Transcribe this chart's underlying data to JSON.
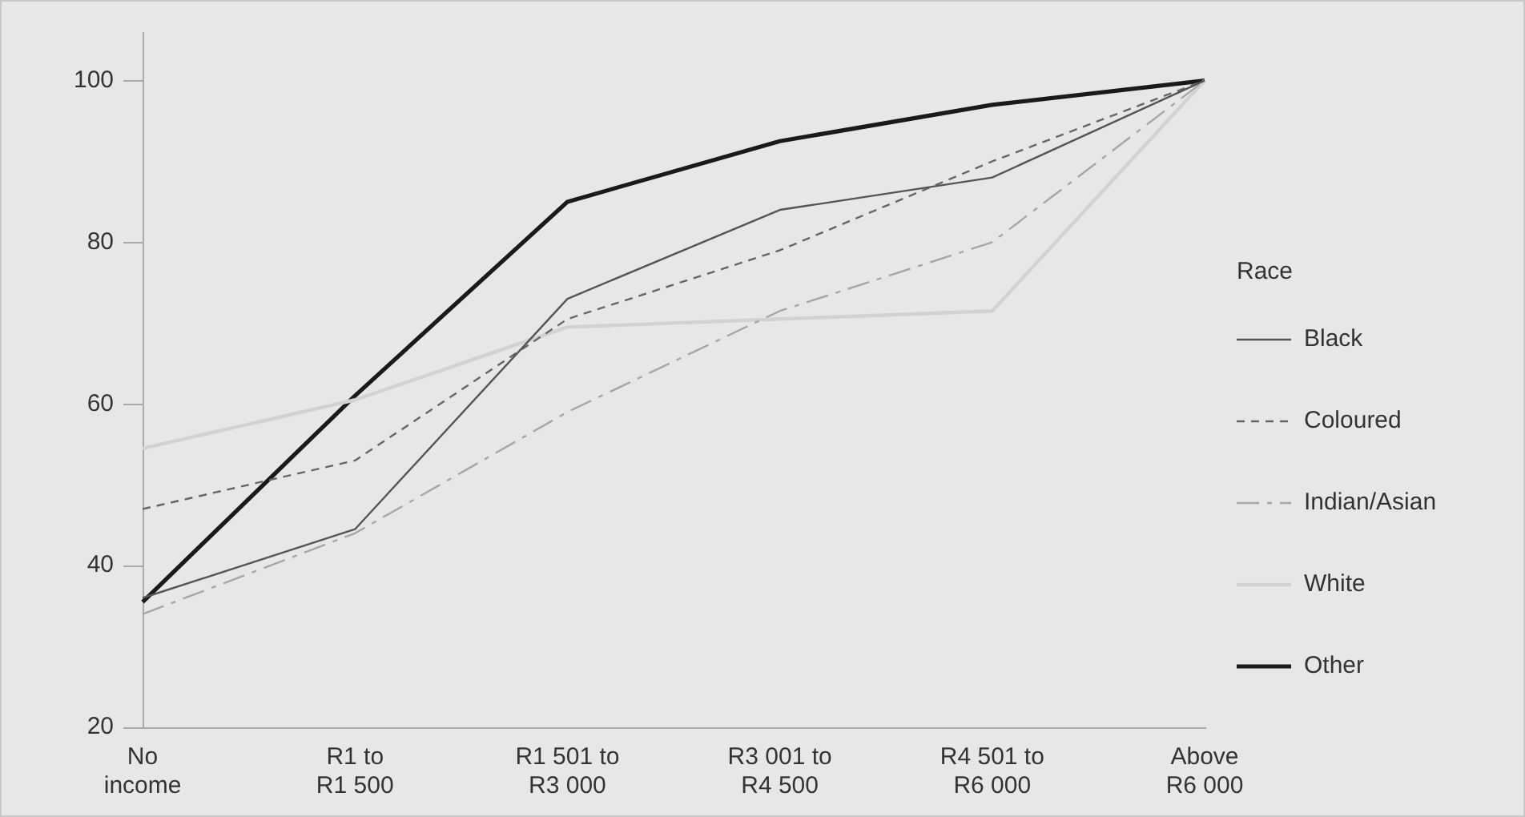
{
  "chart_data": {
    "type": "line",
    "categories": [
      "No\nincome",
      "R1 to\nR1 500",
      "R1 501 to\nR3 000",
      "R3 001 to\nR4 500",
      "R4 501 to\nR6 000",
      "Above\nR6 000"
    ],
    "legend_title": "Race",
    "legend": "right",
    "grid": false,
    "marker": "none",
    "ylim": [
      20,
      106
    ],
    "yticks": [
      20,
      40,
      60,
      80,
      100
    ],
    "series": [
      {
        "name": "Black",
        "color": "#555555",
        "line_style": "solid",
        "values": [
          36,
          44.5,
          73,
          84,
          88,
          100
        ]
      },
      {
        "name": "Coloured",
        "color": "#666666",
        "line_style": "dashed",
        "values": [
          47,
          53,
          70.5,
          79,
          90,
          100
        ]
      },
      {
        "name": "Indian/Asian",
        "color": "#a6a6a6",
        "line_style": "dashdot",
        "values": [
          34,
          44,
          59,
          71.5,
          80,
          100
        ]
      },
      {
        "name": "White",
        "color": "#d2d2d2",
        "line_style": "solid",
        "values": [
          54.5,
          60.5,
          69.5,
          70.5,
          71.5,
          100
        ]
      },
      {
        "name": "Other",
        "color": "#1a1a1a",
        "line_style": "solid",
        "values": [
          35.5,
          61,
          85,
          92.5,
          97,
          100
        ]
      }
    ]
  }
}
